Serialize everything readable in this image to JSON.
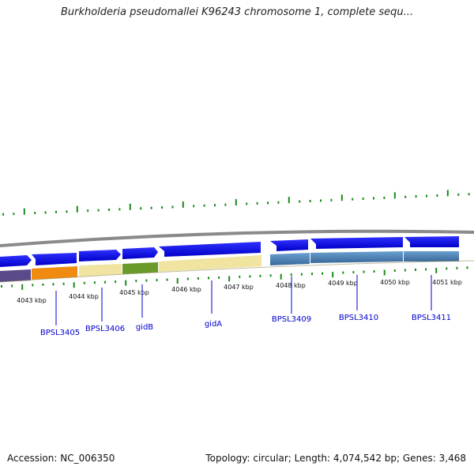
{
  "title": "Burkholderia pseudomallei K96243 chromosome 1, complete sequ...",
  "footer": {
    "accession": "Accession: NC_006350",
    "summary": "Topology: circular; Length: 4,074,542 bp; Genes: 3,468"
  },
  "colors": {
    "backbone": "#8a8a8a",
    "forward_gene": "#1010e6",
    "reverse_gene": "#4a7fb5",
    "tick": "#1a8a1a",
    "label_line": "#0000cc"
  },
  "ruler": [
    {
      "label": "4043 kbp"
    },
    {
      "label": "4044 kbp"
    },
    {
      "label": "4045 kbp"
    },
    {
      "label": "4046 kbp"
    },
    {
      "label": "4047 kbp"
    },
    {
      "label": "4048 kbp"
    },
    {
      "label": "4049 kbp"
    },
    {
      "label": "4050 kbp"
    },
    {
      "label": "4051 kbp"
    }
  ],
  "genes": [
    {
      "label": "BPSL3405"
    },
    {
      "label": "BPSL3406"
    },
    {
      "label": "gidB"
    },
    {
      "label": "gidA"
    },
    {
      "label": "BPSL3409"
    },
    {
      "label": "BPSL3410"
    },
    {
      "label": "BPSL3411"
    }
  ]
}
